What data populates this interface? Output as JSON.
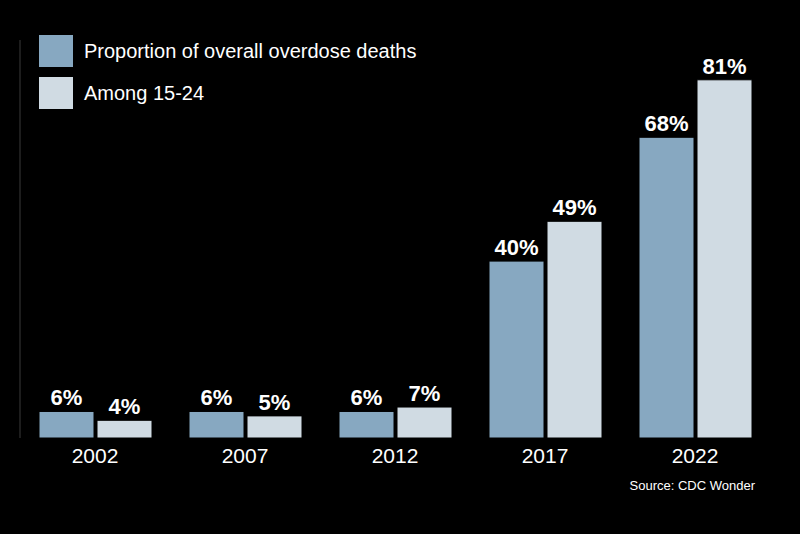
{
  "chart_data": {
    "type": "bar",
    "categories": [
      "2002",
      "2007",
      "2012",
      "2017",
      "2022"
    ],
    "series": [
      {
        "name": "Proportion of overall overdose deaths",
        "color": "#87a8c1",
        "values": [
          6,
          6,
          6,
          40,
          68
        ],
        "value_labels": [
          "6%",
          "6%",
          "6%",
          "40%",
          "68%"
        ]
      },
      {
        "name": "Among 15-24",
        "color": "#d0dbe3",
        "values": [
          4,
          5,
          7,
          49,
          81
        ],
        "value_labels": [
          "4%",
          "5%",
          "7%",
          "49%",
          "81%"
        ]
      }
    ],
    "ylim": [
      0,
      90
    ],
    "grid": false,
    "data_labels": true,
    "tick_labels": "x",
    "legend": "upper left",
    "source": "Source: CDC Wonder"
  }
}
